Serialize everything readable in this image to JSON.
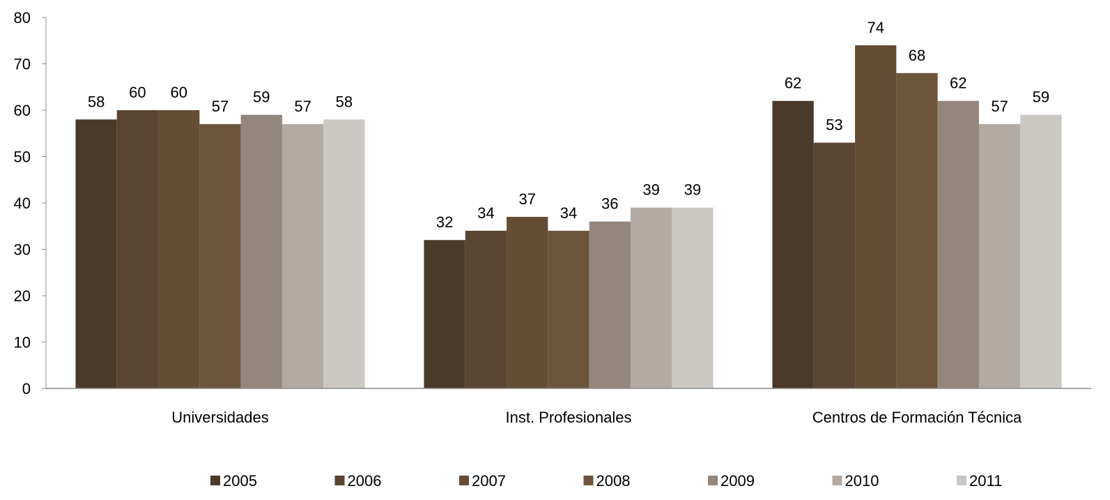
{
  "chart_data": {
    "type": "bar",
    "title": "",
    "xlabel": "",
    "ylabel": "",
    "ylim": [
      0,
      80
    ],
    "yticks": [
      0,
      10,
      20,
      30,
      40,
      50,
      60,
      70,
      80
    ],
    "grid": false,
    "legend_position": "bottom",
    "data_labels": true,
    "categories": [
      "Universidades",
      "Inst. Profesionales",
      "Centros de Formación Técnica"
    ],
    "series": [
      {
        "name": "2005",
        "color": "#4a3a2a",
        "values": [
          58,
          32,
          62
        ]
      },
      {
        "name": "2006",
        "color": "#5a4532",
        "values": [
          60,
          34,
          53
        ]
      },
      {
        "name": "2007",
        "color": "#654c35",
        "values": [
          60,
          37,
          74
        ]
      },
      {
        "name": "2008",
        "color": "#6d553c",
        "values": [
          57,
          34,
          68
        ]
      },
      {
        "name": "2009",
        "color": "#93877d",
        "values": [
          59,
          36,
          62
        ]
      },
      {
        "name": "2010",
        "color": "#b3aaa4",
        "values": [
          57,
          39,
          57
        ]
      },
      {
        "name": "2011",
        "color": "#cbc7c2",
        "values": [
          58,
          39,
          59
        ]
      }
    ]
  }
}
